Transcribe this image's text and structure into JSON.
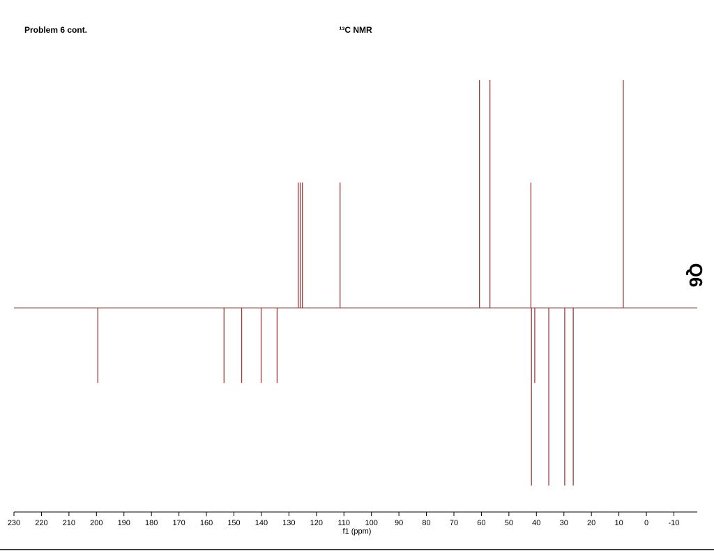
{
  "chart_data": {
    "type": "stem",
    "title": "¹³C NMR",
    "annotations": [
      "Problem 6 cont.",
      "Q6"
    ],
    "x_label": "f1 (ppm)",
    "x": [
      199.5,
      153.6,
      147.2,
      140.1,
      134.3,
      126.6,
      125.9,
      125.1,
      111.4,
      60.7,
      56.9,
      42.0,
      41.8,
      40.6,
      35.5,
      29.7,
      26.6,
      8.4
    ],
    "values": [
      -33,
      -33,
      -33,
      -33,
      -33,
      55,
      55,
      55,
      55,
      100,
      100,
      55,
      -78,
      -33,
      -78,
      -78,
      -78,
      100
    ],
    "xlim": [
      230,
      -18.5
    ],
    "xticks": [
      230,
      220,
      210,
      200,
      190,
      180,
      170,
      160,
      150,
      140,
      130,
      120,
      110,
      100,
      90,
      80,
      70,
      60,
      50,
      40,
      30,
      20,
      10,
      0,
      -10
    ],
    "ylim": [
      -90,
      114
    ],
    "color": "#9b3b3b"
  }
}
